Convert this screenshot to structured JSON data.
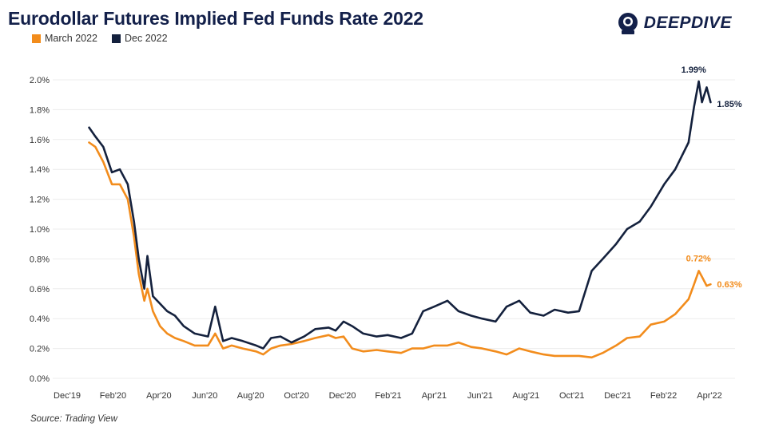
{
  "header": {
    "title": "Eurodollar Futures Implied Fed Funds Rate 2022",
    "logo_text": "DEEPDIVE"
  },
  "footer": {
    "source": "Source: Trading View"
  },
  "colors": {
    "march": "#f28c1c",
    "dec": "#14213d"
  },
  "chart_data": {
    "type": "line",
    "title": "Eurodollar Futures Implied Fed Funds Rate 2022",
    "xlabel": "",
    "ylabel": "",
    "x_ticks": [
      "Dec'19",
      "Feb'20",
      "Apr'20",
      "Jun'20",
      "Aug'20",
      "Oct'20",
      "Dec'20",
      "Feb'21",
      "Apr'21",
      "Jun'21",
      "Aug'21",
      "Oct'21",
      "Dec'21",
      "Feb'22",
      "Apr'22"
    ],
    "y_ticks": [
      "0.0%",
      "0.2%",
      "0.4%",
      "0.6%",
      "0.8%",
      "1.0%",
      "1.2%",
      "1.4%",
      "1.6%",
      "1.8%",
      "2.0%"
    ],
    "ylim": [
      0.0,
      2.0
    ],
    "xlim": [
      "2019-12-01",
      "2022-04-01"
    ],
    "grid": true,
    "legend_position": "top-left",
    "series": [
      {
        "name": "March 2022",
        "color": "#f28c1c",
        "x": [
          "2020-01-02",
          "2020-01-10",
          "2020-01-20",
          "2020-01-31",
          "2020-02-10",
          "2020-02-20",
          "2020-02-28",
          "2020-03-05",
          "2020-03-12",
          "2020-03-16",
          "2020-03-23",
          "2020-04-01",
          "2020-04-10",
          "2020-04-20",
          "2020-05-01",
          "2020-05-15",
          "2020-06-01",
          "2020-06-10",
          "2020-06-20",
          "2020-07-01",
          "2020-07-15",
          "2020-08-01",
          "2020-08-10",
          "2020-08-20",
          "2020-09-01",
          "2020-09-15",
          "2020-10-01",
          "2020-10-15",
          "2020-11-01",
          "2020-11-10",
          "2020-11-20",
          "2020-12-01",
          "2020-12-15",
          "2021-01-01",
          "2021-01-15",
          "2021-02-01",
          "2021-02-15",
          "2021-03-01",
          "2021-03-15",
          "2021-04-01",
          "2021-04-15",
          "2021-05-01",
          "2021-05-15",
          "2021-06-01",
          "2021-06-15",
          "2021-07-01",
          "2021-07-15",
          "2021-08-01",
          "2021-08-15",
          "2021-09-01",
          "2021-09-15",
          "2021-10-01",
          "2021-10-15",
          "2021-11-01",
          "2021-11-15",
          "2021-12-01",
          "2021-12-15",
          "2022-01-01",
          "2022-01-15",
          "2022-02-01",
          "2022-02-08",
          "2022-02-14",
          "2022-02-18",
          "2022-02-24",
          "2022-03-01"
        ],
        "y": [
          1.58,
          1.55,
          1.45,
          1.3,
          1.3,
          1.2,
          0.95,
          0.7,
          0.52,
          0.6,
          0.45,
          0.35,
          0.3,
          0.27,
          0.25,
          0.22,
          0.22,
          0.3,
          0.2,
          0.22,
          0.2,
          0.18,
          0.16,
          0.2,
          0.22,
          0.23,
          0.25,
          0.27,
          0.29,
          0.27,
          0.28,
          0.2,
          0.18,
          0.19,
          0.18,
          0.17,
          0.2,
          0.2,
          0.22,
          0.22,
          0.24,
          0.21,
          0.2,
          0.18,
          0.16,
          0.2,
          0.18,
          0.16,
          0.15,
          0.15,
          0.15,
          0.14,
          0.17,
          0.22,
          0.27,
          0.28,
          0.36,
          0.38,
          0.43,
          0.53,
          0.63,
          0.72,
          0.68,
          0.62,
          0.63
        ]
      },
      {
        "name": "Dec 2022",
        "color": "#14213d",
        "x": [
          "2020-01-02",
          "2020-01-10",
          "2020-01-20",
          "2020-01-31",
          "2020-02-10",
          "2020-02-20",
          "2020-02-28",
          "2020-03-05",
          "2020-03-12",
          "2020-03-16",
          "2020-03-23",
          "2020-04-01",
          "2020-04-10",
          "2020-04-20",
          "2020-05-01",
          "2020-05-15",
          "2020-06-01",
          "2020-06-10",
          "2020-06-20",
          "2020-07-01",
          "2020-07-15",
          "2020-08-01",
          "2020-08-10",
          "2020-08-20",
          "2020-09-01",
          "2020-09-15",
          "2020-10-01",
          "2020-10-15",
          "2020-11-01",
          "2020-11-10",
          "2020-11-20",
          "2020-12-01",
          "2020-12-15",
          "2021-01-01",
          "2021-01-15",
          "2021-02-01",
          "2021-02-15",
          "2021-03-01",
          "2021-03-15",
          "2021-04-01",
          "2021-04-15",
          "2021-05-01",
          "2021-05-15",
          "2021-06-01",
          "2021-06-15",
          "2021-07-01",
          "2021-07-15",
          "2021-08-01",
          "2021-08-15",
          "2021-09-01",
          "2021-09-15",
          "2021-10-01",
          "2021-10-15",
          "2021-11-01",
          "2021-11-15",
          "2021-12-01",
          "2021-12-15",
          "2022-01-01",
          "2022-01-15",
          "2022-02-01",
          "2022-02-08",
          "2022-02-14",
          "2022-02-18",
          "2022-02-24",
          "2022-03-01"
        ],
        "y": [
          1.68,
          1.62,
          1.55,
          1.38,
          1.4,
          1.3,
          1.05,
          0.8,
          0.6,
          0.82,
          0.55,
          0.5,
          0.45,
          0.42,
          0.35,
          0.3,
          0.28,
          0.48,
          0.25,
          0.27,
          0.25,
          0.22,
          0.2,
          0.27,
          0.28,
          0.24,
          0.28,
          0.33,
          0.34,
          0.32,
          0.38,
          0.35,
          0.3,
          0.28,
          0.29,
          0.27,
          0.3,
          0.45,
          0.48,
          0.52,
          0.45,
          0.42,
          0.4,
          0.38,
          0.48,
          0.52,
          0.44,
          0.42,
          0.46,
          0.44,
          0.45,
          0.72,
          0.8,
          0.9,
          1.0,
          1.05,
          1.15,
          1.3,
          1.4,
          1.58,
          1.82,
          1.99,
          1.85,
          1.95,
          1.85
        ]
      }
    ],
    "annotations": [
      {
        "series": "March 2022",
        "text": "0.72%",
        "x": "2022-02-14",
        "y": 0.72
      },
      {
        "series": "March 2022",
        "text": "0.63%",
        "x": "2022-03-01",
        "y": 0.63
      },
      {
        "series": "Dec 2022",
        "text": "1.99%",
        "x": "2022-02-14",
        "y": 1.99
      },
      {
        "series": "Dec 2022",
        "text": "1.85%",
        "x": "2022-03-01",
        "y": 1.85
      }
    ]
  }
}
